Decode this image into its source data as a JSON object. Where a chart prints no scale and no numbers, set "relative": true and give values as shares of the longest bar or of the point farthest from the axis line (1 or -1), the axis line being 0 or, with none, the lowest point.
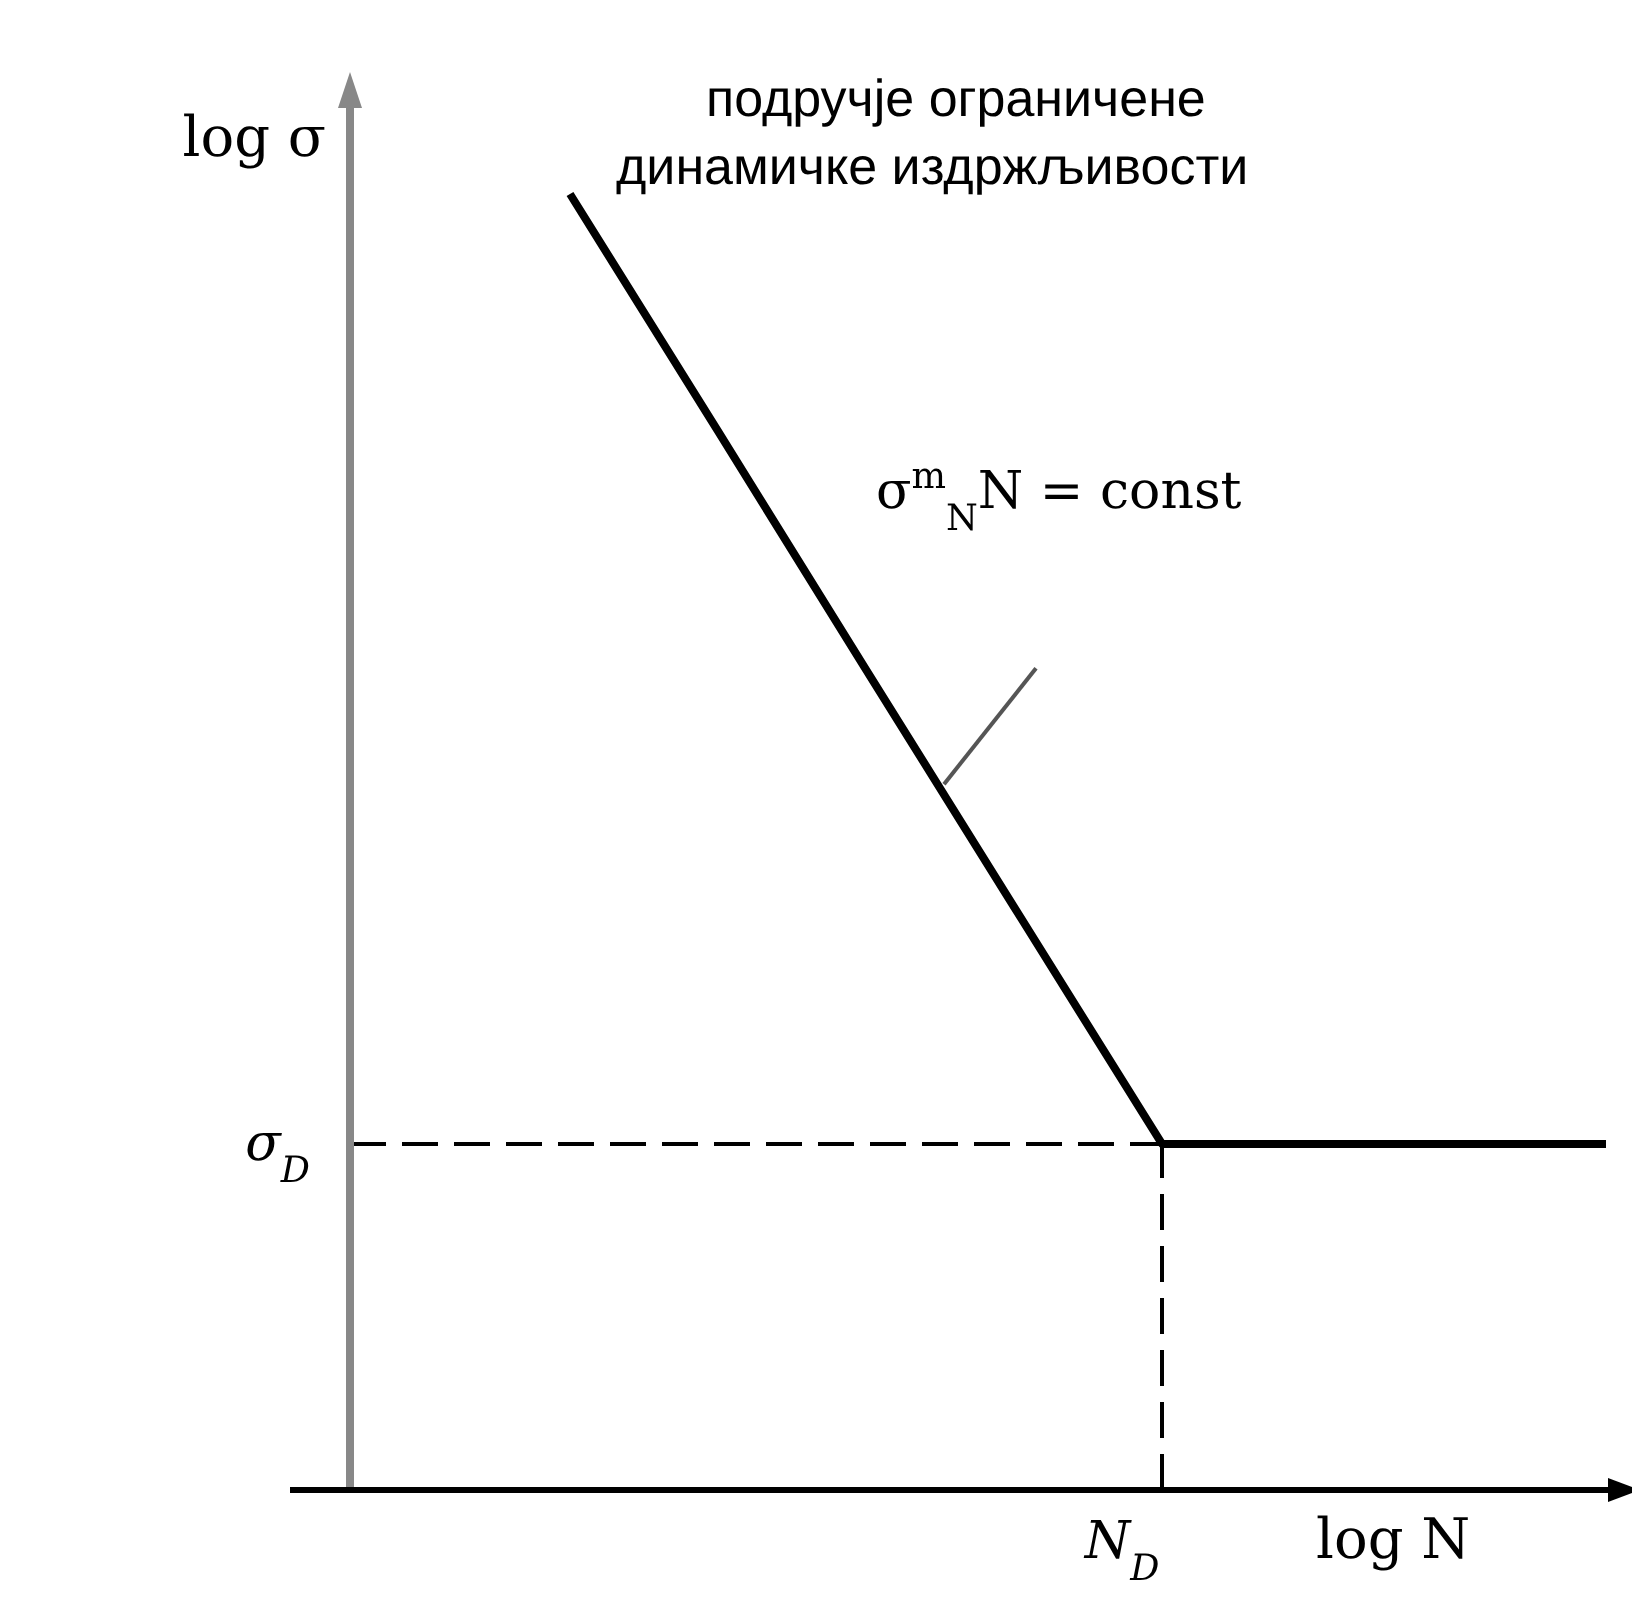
{
  "chart_data": {
    "type": "line",
    "relative": true,
    "xlabel": "log N",
    "ylabel": "log σ",
    "categories": [
      null,
      null,
      null,
      null,
      null,
      null,
      null,
      null
    ],
    "series": [
      {
        "color": "#000000",
        "values": [
          1,
          0.817,
          0.633,
          0.45,
          0.267,
          0.267,
          0.267,
          0.267
        ]
      }
    ],
    "line_style": "solid",
    "ref_lines": [
      {
        "axis": "y",
        "value": 0.267,
        "label": "σ$_{D}$",
        "line_style": "dashed",
        "color": "#000000"
      }
    ],
    "annotations": [
      "подручје ограничене динамичке издржљивости",
      "σ$^{m}$$_{N}$N = const",
      "N$_{D}$"
    ]
  }
}
